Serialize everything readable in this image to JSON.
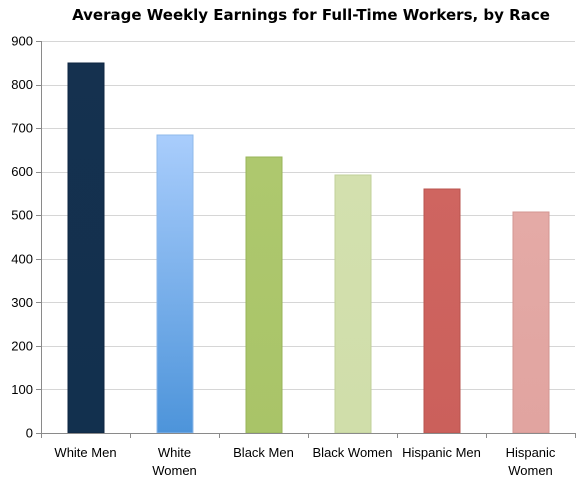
{
  "chart_data": {
    "type": "bar",
    "title": "Average Weekly Earnings for Full-Time Workers, by Race",
    "xlabel": "",
    "ylabel": "",
    "ylim": [
      0,
      900
    ],
    "yticks": [
      0,
      100,
      200,
      300,
      400,
      500,
      600,
      700,
      800,
      900
    ],
    "grid": true,
    "legend": "none",
    "categories": [
      [
        "White Men"
      ],
      [
        "White",
        "Women"
      ],
      [
        "Black Men"
      ],
      [
        "Black Women"
      ],
      [
        "Hispanic Men"
      ],
      [
        "Hispanic",
        "Women"
      ]
    ],
    "values": [
      850,
      684,
      633,
      592,
      560,
      508
    ],
    "colors": [
      {
        "top": "#15314f",
        "bottom": "#12304e",
        "border": "#0d2540"
      },
      {
        "top": "#a9cdfc",
        "bottom": "#4d94da",
        "border": "#8fb9ea"
      },
      {
        "top": "#aec86e",
        "bottom": "#a9c468",
        "border": "#98b45a"
      },
      {
        "top": "#d3e0ae",
        "bottom": "#d0deaa",
        "border": "#c1d099"
      },
      {
        "top": "#cf6560",
        "bottom": "#cb605b",
        "border": "#b9544f"
      },
      {
        "top": "#e4aaa6",
        "bottom": "#e1a4a0",
        "border": "#d39692"
      }
    ]
  }
}
